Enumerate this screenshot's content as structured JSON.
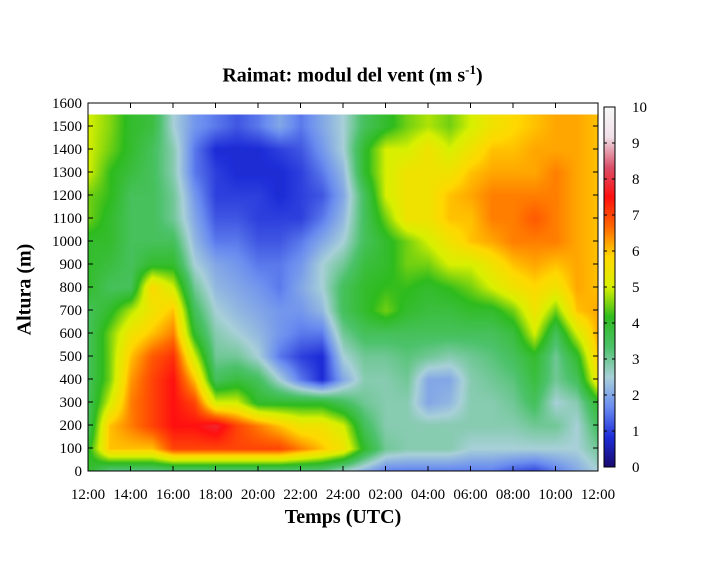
{
  "chart_data": {
    "type": "heatmap",
    "title_main": "Raimat: modul del vent (m s",
    "title_sup": "-1",
    "title_end": ")",
    "xlabel": "Temps (UTC)",
    "ylabel": "Altura (m)",
    "x_ticks": [
      "12:00",
      "14:00",
      "16:00",
      "18:00",
      "20:00",
      "22:00",
      "24:00",
      "02:00",
      "04:00",
      "06:00",
      "08:00",
      "10:00",
      "12:00"
    ],
    "x_range_hours": [
      0,
      24
    ],
    "y_ticks": [
      0,
      100,
      200,
      300,
      400,
      500,
      600,
      700,
      800,
      900,
      1000,
      1100,
      1200,
      1300,
      1400,
      1500,
      1600
    ],
    "ylim": [
      0,
      1600
    ],
    "data_top_m": 1550,
    "colorbar_ticks": [
      0,
      1,
      2,
      3,
      4,
      5,
      6,
      7,
      8,
      9,
      10
    ],
    "colorbar_range": [
      0,
      10
    ],
    "colormap": [
      "#1a0a6e",
      "#1e2dd8",
      "#6a8cf0",
      "#a8d0d8",
      "#4cc26a",
      "#2ebb1e",
      "#d8f000",
      "#ffd800",
      "#ff6800",
      "#ff1010",
      "#d9506a",
      "#f0e0e8",
      "#f8f8f8"
    ],
    "heights_m": [
      0,
      100,
      200,
      300,
      400,
      500,
      600,
      700,
      800,
      900,
      1000,
      1100,
      1200,
      1300,
      1400,
      1500,
      1550
    ],
    "rows": [
      {
        "t": 0,
        "v": [
          4.0,
          4.0,
          3.5,
          3.5,
          3.5,
          3.5,
          3.5,
          3.5,
          4.0,
          4.0,
          4.0,
          4.5,
          4.5,
          5.0,
          5.0,
          5.0,
          5.0
        ]
      },
      {
        "t": 1,
        "v": [
          3.0,
          6.0,
          6.0,
          5.0,
          4.5,
          4.5,
          4.5,
          4.0,
          3.5,
          3.8,
          4.0,
          4.0,
          4.2,
          4.2,
          4.5,
          4.6,
          4.6
        ]
      },
      {
        "t": 2,
        "v": [
          3.0,
          6.0,
          6.5,
          6.5,
          6.3,
          6.0,
          5.5,
          4.8,
          3.5,
          3.5,
          3.5,
          3.5,
          3.5,
          3.8,
          4.0,
          4.0,
          4.0
        ]
      },
      {
        "t": 3,
        "v": [
          3.0,
          6.0,
          7.0,
          7.0,
          7.0,
          6.8,
          6.0,
          5.5,
          5.8,
          4.0,
          3.5,
          3.5,
          3.5,
          3.5,
          3.5,
          3.8,
          3.8
        ]
      },
      {
        "t": 4,
        "v": [
          3.0,
          7.0,
          7.5,
          7.5,
          7.5,
          7.2,
          6.5,
          6.0,
          5.0,
          4.0,
          3.5,
          3.0,
          3.0,
          2.8,
          2.8,
          2.5,
          2.5
        ]
      },
      {
        "t": 5,
        "v": [
          3.0,
          7.0,
          7.5,
          7.0,
          6.0,
          5.0,
          4.0,
          3.5,
          3.0,
          2.5,
          2.2,
          2.0,
          1.8,
          1.5,
          1.5,
          1.8,
          1.8
        ]
      },
      {
        "t": 6,
        "v": [
          3.0,
          7.0,
          7.8,
          5.0,
          3.5,
          3.0,
          2.8,
          2.5,
          2.2,
          2.0,
          1.5,
          1.2,
          1.0,
          1.0,
          0.8,
          1.5,
          1.5
        ]
      },
      {
        "t": 7,
        "v": [
          3.0,
          7.0,
          7.0,
          5.0,
          3.8,
          3.0,
          2.5,
          2.2,
          2.0,
          1.8,
          1.5,
          1.2,
          1.0,
          0.8,
          0.8,
          1.2,
          1.2
        ]
      },
      {
        "t": 8,
        "v": [
          3.0,
          7.0,
          6.5,
          4.0,
          3.5,
          2.5,
          2.2,
          2.0,
          1.8,
          1.5,
          1.2,
          1.0,
          1.0,
          0.8,
          0.8,
          1.5,
          1.5
        ]
      },
      {
        "t": 9,
        "v": [
          3.0,
          7.0,
          6.0,
          4.0,
          2.5,
          1.5,
          1.8,
          1.8,
          1.5,
          1.5,
          1.2,
          1.0,
          0.8,
          0.8,
          1.0,
          2.0,
          2.0
        ]
      },
      {
        "t": 10,
        "v": [
          3.0,
          6.5,
          5.5,
          4.0,
          1.5,
          1.0,
          1.5,
          1.8,
          2.0,
          1.8,
          1.5,
          1.0,
          1.0,
          1.0,
          1.2,
          1.5,
          1.5
        ]
      },
      {
        "t": 11,
        "v": [
          3.0,
          6.0,
          5.5,
          4.0,
          0.8,
          0.8,
          1.5,
          2.2,
          2.5,
          2.5,
          2.0,
          1.5,
          1.2,
          1.5,
          1.8,
          2.0,
          2.0
        ]
      },
      {
        "t": 12,
        "v": [
          2.5,
          5.5,
          5.0,
          3.5,
          2.0,
          2.5,
          3.0,
          3.5,
          3.5,
          3.0,
          2.5,
          2.2,
          2.0,
          2.2,
          2.5,
          2.5,
          2.5
        ]
      },
      {
        "t": 13,
        "v": [
          2.0,
          4.0,
          3.5,
          3.0,
          2.8,
          3.0,
          3.5,
          4.0,
          4.0,
          3.8,
          3.5,
          3.5,
          3.5,
          4.0,
          4.0,
          3.5,
          3.5
        ]
      },
      {
        "t": 14,
        "v": [
          1.5,
          3.0,
          2.8,
          2.8,
          2.8,
          3.0,
          3.5,
          4.5,
          4.2,
          4.0,
          4.0,
          4.5,
          5.0,
          5.0,
          5.0,
          4.0,
          4.0
        ]
      },
      {
        "t": 15,
        "v": [
          1.5,
          2.8,
          2.8,
          2.8,
          3.0,
          3.2,
          3.5,
          4.0,
          4.2,
          4.5,
          4.5,
          5.5,
          5.5,
          5.5,
          5.0,
          4.5,
          4.5
        ]
      },
      {
        "t": 16,
        "v": [
          1.5,
          2.8,
          2.8,
          2.0,
          2.0,
          3.0,
          3.5,
          3.8,
          4.0,
          4.5,
          5.0,
          5.5,
          5.5,
          5.5,
          5.5,
          4.8,
          4.8
        ]
      },
      {
        "t": 17,
        "v": [
          1.5,
          2.8,
          2.8,
          2.2,
          2.0,
          2.8,
          3.5,
          3.8,
          4.2,
          5.0,
          5.5,
          6.0,
          6.0,
          5.5,
          5.0,
          4.5,
          4.5
        ]
      },
      {
        "t": 18,
        "v": [
          1.5,
          2.5,
          2.8,
          2.8,
          2.8,
          3.0,
          3.5,
          4.0,
          4.5,
          5.0,
          6.0,
          6.0,
          6.2,
          6.0,
          5.5,
          5.0,
          5.0
        ]
      },
      {
        "t": 19,
        "v": [
          1.5,
          2.5,
          2.8,
          2.8,
          3.0,
          3.2,
          3.5,
          4.0,
          5.0,
          5.5,
          6.2,
          6.5,
          6.5,
          6.2,
          6.0,
          5.5,
          5.5
        ]
      },
      {
        "t": 20,
        "v": [
          1.2,
          2.5,
          2.8,
          3.0,
          3.2,
          3.5,
          3.8,
          4.5,
          5.5,
          6.0,
          6.5,
          6.5,
          6.5,
          6.2,
          6.0,
          5.8,
          5.8
        ]
      },
      {
        "t": 21,
        "v": [
          1.0,
          2.5,
          3.0,
          3.5,
          3.8,
          4.0,
          5.0,
          5.5,
          5.8,
          6.2,
          6.5,
          6.8,
          6.5,
          6.2,
          6.2,
          6.0,
          6.0
        ]
      },
      {
        "t": 22,
        "v": [
          1.5,
          2.5,
          3.0,
          2.5,
          3.0,
          3.0,
          3.5,
          4.5,
          5.5,
          6.0,
          6.5,
          6.5,
          6.5,
          6.5,
          6.2,
          6.2,
          6.2
        ]
      },
      {
        "t": 23,
        "v": [
          2.0,
          2.5,
          2.5,
          2.8,
          3.5,
          4.0,
          5.0,
          6.0,
          6.2,
          6.2,
          6.2,
          6.2,
          6.2,
          6.2,
          6.2,
          6.2,
          6.2
        ]
      },
      {
        "t": 24,
        "v": [
          2.5,
          3.0,
          3.5,
          4.0,
          5.5,
          6.0,
          6.2,
          6.2,
          6.0,
          6.0,
          6.0,
          6.0,
          6.0,
          6.0,
          6.0,
          6.0,
          6.0
        ]
      }
    ]
  }
}
